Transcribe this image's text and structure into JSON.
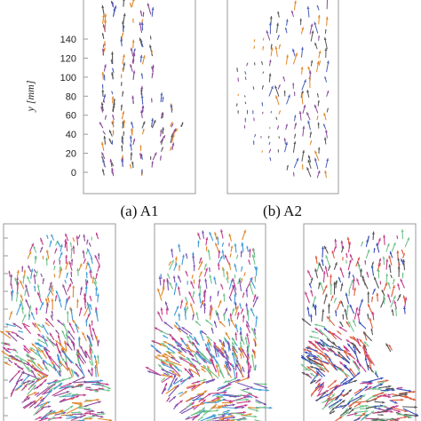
{
  "chart_data": {
    "type": "scatter",
    "description_kind": "vector-field panels",
    "y_axis": {
      "label": "y [mm]",
      "ticks": [
        0,
        20,
        40,
        60,
        80,
        100,
        120,
        140
      ],
      "range": [
        -12,
        162
      ]
    },
    "panels": [
      {
        "caption": "(a) A1",
        "colors": [
          "#4a5fb8",
          "#e0862a",
          "#8a4a9a",
          "#555555"
        ],
        "field": "columns"
      },
      {
        "caption": "(b) A2",
        "colors": [
          "#4a5fb8",
          "#e0862a",
          "#8a4a9a",
          "#555555"
        ],
        "field": "sparse"
      },
      {
        "caption": "",
        "colors": [
          "#e0862a",
          "#3f9bd6",
          "#6fc28a",
          "#8a4a9a",
          "#c23b8a"
        ],
        "field": "dense"
      },
      {
        "caption": "",
        "colors": [
          "#7a4fb0",
          "#e0862a",
          "#3f9bd6",
          "#6fc28a",
          "#c23b8a"
        ],
        "field": "dense"
      },
      {
        "caption": "",
        "colors": [
          "#3a4fb8",
          "#c23b8a",
          "#e05a3a",
          "#6fc28a",
          "#555555"
        ],
        "field": "ring"
      }
    ]
  }
}
